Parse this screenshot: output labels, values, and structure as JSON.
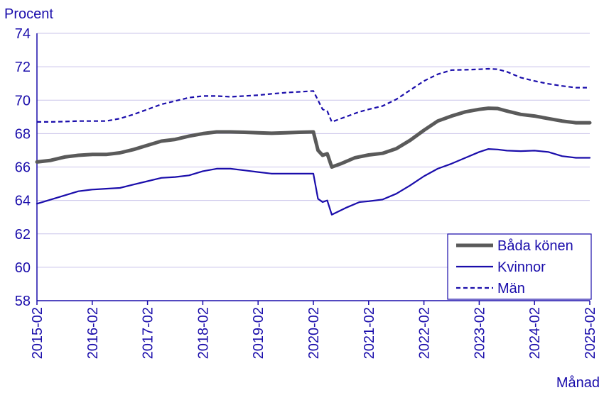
{
  "chart_data": {
    "type": "line",
    "ylabel": "Procent",
    "xlabel": "Månad",
    "ylim": [
      58,
      74
    ],
    "yticks": [
      "58",
      "60",
      "62",
      "64",
      "66",
      "68",
      "70",
      "72",
      "74"
    ],
    "xlim": [
      "2015-02",
      "2025-02"
    ],
    "xticks": [
      "2015-02",
      "2016-02",
      "2017-02",
      "2018-02",
      "2019-02",
      "2020-02",
      "2021-02",
      "2022-02",
      "2023-02",
      "2024-02",
      "2025-02"
    ],
    "grid": "horizontal",
    "legend_position": "bottom-right",
    "series": [
      {
        "name": "Båda könen",
        "color": "#5a5a5a",
        "style": "thick-solid",
        "points": [
          [
            "2015-02",
            66.3
          ],
          [
            "2015-05",
            66.4
          ],
          [
            "2015-08",
            66.6
          ],
          [
            "2015-11",
            66.7
          ],
          [
            "2016-02",
            66.75
          ],
          [
            "2016-05",
            66.75
          ],
          [
            "2016-08",
            66.85
          ],
          [
            "2016-11",
            67.05
          ],
          [
            "2017-02",
            67.3
          ],
          [
            "2017-05",
            67.55
          ],
          [
            "2017-08",
            67.65
          ],
          [
            "2017-11",
            67.85
          ],
          [
            "2018-02",
            68.0
          ],
          [
            "2018-05",
            68.1
          ],
          [
            "2018-08",
            68.1
          ],
          [
            "2018-11",
            68.08
          ],
          [
            "2019-02",
            68.05
          ],
          [
            "2019-05",
            68.02
          ],
          [
            "2019-08",
            68.05
          ],
          [
            "2019-11",
            68.08
          ],
          [
            "2020-02",
            68.1
          ],
          [
            "2020-03",
            67.0
          ],
          [
            "2020-04",
            66.7
          ],
          [
            "2020-05",
            66.8
          ],
          [
            "2020-06",
            66.0
          ],
          [
            "2020-08",
            66.2
          ],
          [
            "2020-11",
            66.55
          ],
          [
            "2021-02",
            66.72
          ],
          [
            "2021-05",
            66.82
          ],
          [
            "2021-08",
            67.1
          ],
          [
            "2021-11",
            67.6
          ],
          [
            "2022-02",
            68.2
          ],
          [
            "2022-05",
            68.75
          ],
          [
            "2022-08",
            69.05
          ],
          [
            "2022-11",
            69.3
          ],
          [
            "2023-02",
            69.45
          ],
          [
            "2023-04",
            69.52
          ],
          [
            "2023-06",
            69.5
          ],
          [
            "2023-08",
            69.35
          ],
          [
            "2023-11",
            69.15
          ],
          [
            "2024-02",
            69.05
          ],
          [
            "2024-05",
            68.9
          ],
          [
            "2024-08",
            68.75
          ],
          [
            "2024-11",
            68.65
          ],
          [
            "2025-02",
            68.65
          ]
        ]
      },
      {
        "name": "Kvinnor",
        "color": "#1a0dab",
        "style": "solid",
        "points": [
          [
            "2015-02",
            63.8
          ],
          [
            "2015-05",
            64.05
          ],
          [
            "2015-08",
            64.3
          ],
          [
            "2015-11",
            64.55
          ],
          [
            "2016-02",
            64.65
          ],
          [
            "2016-05",
            64.7
          ],
          [
            "2016-08",
            64.75
          ],
          [
            "2016-11",
            64.95
          ],
          [
            "2017-02",
            65.15
          ],
          [
            "2017-05",
            65.35
          ],
          [
            "2017-08",
            65.4
          ],
          [
            "2017-11",
            65.5
          ],
          [
            "2018-02",
            65.75
          ],
          [
            "2018-05",
            65.9
          ],
          [
            "2018-08",
            65.9
          ],
          [
            "2018-11",
            65.8
          ],
          [
            "2019-02",
            65.7
          ],
          [
            "2019-05",
            65.6
          ],
          [
            "2019-08",
            65.6
          ],
          [
            "2019-11",
            65.6
          ],
          [
            "2020-02",
            65.6
          ],
          [
            "2020-03",
            64.1
          ],
          [
            "2020-04",
            63.9
          ],
          [
            "2020-05",
            64.0
          ],
          [
            "2020-06",
            63.15
          ],
          [
            "2020-09",
            63.55
          ],
          [
            "2020-12",
            63.9
          ],
          [
            "2021-02",
            63.95
          ],
          [
            "2021-05",
            64.05
          ],
          [
            "2021-08",
            64.4
          ],
          [
            "2021-11",
            64.9
          ],
          [
            "2022-02",
            65.45
          ],
          [
            "2022-05",
            65.9
          ],
          [
            "2022-08",
            66.2
          ],
          [
            "2022-11",
            66.55
          ],
          [
            "2023-02",
            66.9
          ],
          [
            "2023-04",
            67.08
          ],
          [
            "2023-06",
            67.05
          ],
          [
            "2023-08",
            66.98
          ],
          [
            "2023-11",
            66.95
          ],
          [
            "2024-02",
            66.98
          ],
          [
            "2024-05",
            66.9
          ],
          [
            "2024-08",
            66.65
          ],
          [
            "2024-11",
            66.55
          ],
          [
            "2025-02",
            66.55
          ]
        ]
      },
      {
        "name": "Män",
        "color": "#1a0dab",
        "style": "dashed",
        "points": [
          [
            "2015-02",
            68.7
          ],
          [
            "2015-05",
            68.7
          ],
          [
            "2015-08",
            68.72
          ],
          [
            "2015-11",
            68.75
          ],
          [
            "2016-02",
            68.75
          ],
          [
            "2016-05",
            68.75
          ],
          [
            "2016-08",
            68.9
          ],
          [
            "2016-11",
            69.15
          ],
          [
            "2017-02",
            69.45
          ],
          [
            "2017-05",
            69.75
          ],
          [
            "2017-08",
            69.95
          ],
          [
            "2017-11",
            70.15
          ],
          [
            "2018-02",
            70.25
          ],
          [
            "2018-05",
            70.25
          ],
          [
            "2018-08",
            70.2
          ],
          [
            "2018-11",
            70.25
          ],
          [
            "2019-02",
            70.3
          ],
          [
            "2019-05",
            70.38
          ],
          [
            "2019-08",
            70.45
          ],
          [
            "2019-11",
            70.5
          ],
          [
            "2020-02",
            70.55
          ],
          [
            "2020-03",
            70.0
          ],
          [
            "2020-04",
            69.45
          ],
          [
            "2020-05",
            69.35
          ],
          [
            "2020-06",
            68.7
          ],
          [
            "2020-09",
            69.0
          ],
          [
            "2020-12",
            69.3
          ],
          [
            "2021-02",
            69.45
          ],
          [
            "2021-05",
            69.65
          ],
          [
            "2021-08",
            70.05
          ],
          [
            "2021-11",
            70.6
          ],
          [
            "2022-02",
            71.15
          ],
          [
            "2022-05",
            71.55
          ],
          [
            "2022-08",
            71.8
          ],
          [
            "2022-11",
            71.82
          ],
          [
            "2023-02",
            71.85
          ],
          [
            "2023-04",
            71.88
          ],
          [
            "2023-06",
            71.85
          ],
          [
            "2023-08",
            71.7
          ],
          [
            "2023-11",
            71.35
          ],
          [
            "2024-02",
            71.15
          ],
          [
            "2024-05",
            70.98
          ],
          [
            "2024-08",
            70.85
          ],
          [
            "2024-11",
            70.75
          ],
          [
            "2025-02",
            70.75
          ]
        ]
      }
    ]
  }
}
